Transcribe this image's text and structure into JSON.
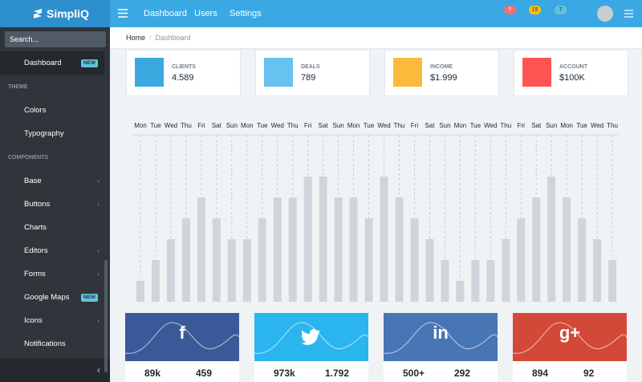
{
  "header": {
    "brand": "SimpliQ",
    "nav": [
      "Dashboard",
      "Users",
      "Settings"
    ],
    "badges": [
      5,
      15,
      7
    ]
  },
  "sidebar": {
    "search": "Search...",
    "dashboard": {
      "label": "Dashboard",
      "badge": "NEW"
    },
    "sections": [
      {
        "title": "THEME",
        "items": [
          {
            "label": "Colors"
          },
          {
            "label": "Typography"
          }
        ]
      },
      {
        "title": "COMPONENTS",
        "items": [
          {
            "label": "Base"
          },
          {
            "label": "Buttons"
          },
          {
            "label": "Charts"
          },
          {
            "label": "Editors"
          },
          {
            "label": "Forms"
          },
          {
            "label": "Google Maps",
            "badge": "NEW"
          },
          {
            "label": "Icons"
          },
          {
            "label": "Notifications"
          }
        ]
      }
    ]
  },
  "breadcrumb": [
    "Home",
    "Dashboard"
  ],
  "cards": [
    {
      "label": "CLIENTS",
      "value": "4.589",
      "color": "#3ba9e0"
    },
    {
      "label": "DEALS",
      "value": "789",
      "color": "#67c2ef"
    },
    {
      "label": "INCOME",
      "value": "$1.999",
      "color": "#fabb3d"
    },
    {
      "label": "ACCOUNT",
      "value": "$100K",
      "color": "#ff5454"
    }
  ],
  "chart": {
    "type": "bar",
    "categories": [
      "Mon",
      "Tue",
      "Wed",
      "Thu",
      "Fri",
      "Sat",
      "Sun",
      "Mon",
      "Tue",
      "Wed",
      "Thu",
      "Fri",
      "Sat",
      "Sun",
      "Mon",
      "Tue",
      "Wed",
      "Thu",
      "Fri",
      "Sat",
      "Sun",
      "Mon",
      "Tue",
      "Wed",
      "Thu",
      "Fri",
      "Sat",
      "Sun",
      "Mon",
      "Tue",
      "Wed",
      "Thu"
    ],
    "values": [
      1,
      2,
      3,
      4,
      5,
      4,
      3,
      3,
      4,
      5,
      5,
      6,
      6,
      5,
      5,
      4,
      6,
      5,
      4,
      3,
      2,
      1,
      2,
      2,
      3,
      4,
      5,
      6,
      5,
      4,
      3,
      2
    ],
    "ylim": [
      0,
      8
    ],
    "color": "#d1d4dc"
  },
  "social": [
    {
      "icon": "f",
      "color": "#3b5998",
      "stats": [
        "89k",
        "459"
      ]
    },
    {
      "icon": "",
      "color": "#2bb5ef",
      "stats": [
        "973k",
        "1.792"
      ]
    },
    {
      "icon": "in",
      "color": "#4875b4",
      "stats": [
        "500+",
        "292"
      ]
    },
    {
      "icon": "g+",
      "color": "#d34836",
      "stats": [
        "894",
        "92"
      ]
    }
  ]
}
